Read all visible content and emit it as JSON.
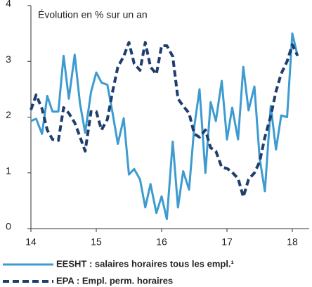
{
  "chart_data": {
    "type": "line",
    "title": "Évolution en % sur un an",
    "x": [
      14,
      14.08,
      14.17,
      14.25,
      14.33,
      14.42,
      14.5,
      14.58,
      14.67,
      14.75,
      14.83,
      14.92,
      15,
      15.08,
      15.17,
      15.25,
      15.33,
      15.42,
      15.5,
      15.58,
      15.67,
      15.75,
      15.83,
      15.92,
      16,
      16.08,
      16.17,
      16.25,
      16.33,
      16.42,
      16.5,
      16.58,
      16.67,
      16.75,
      16.83,
      16.92,
      17,
      17.08,
      17.17,
      17.25,
      17.33,
      17.42,
      17.5,
      17.58,
      17.67,
      17.75,
      17.83,
      17.92,
      18,
      18.08
    ],
    "series": [
      {
        "name": "EESHT : salaires horaires tous les empl.¹",
        "color": "#3d9bd0",
        "dash": false,
        "values": [
          1.93,
          1.97,
          1.7,
          2.38,
          2.1,
          2.1,
          3.1,
          2.33,
          3.12,
          2.25,
          1.72,
          2.45,
          2.8,
          2.62,
          2.58,
          2.07,
          1.52,
          1.98,
          0.97,
          1.07,
          0.88,
          0.38,
          0.8,
          0.28,
          0.58,
          0.17,
          1.56,
          0.38,
          1.03,
          0.7,
          1.83,
          2.5,
          1.0,
          2.27,
          1.93,
          2.65,
          1.6,
          2.17,
          1.6,
          2.9,
          2.12,
          2.55,
          1.26,
          0.67,
          2.2,
          1.42,
          2.03,
          2.0,
          3.5,
          3.1
        ]
      },
      {
        "name": "EPA : Empl. perm. horaires",
        "color": "#1f3e6e",
        "dash": true,
        "values": [
          2.13,
          2.4,
          2.15,
          1.77,
          1.6,
          1.58,
          2.17,
          2.07,
          1.9,
          1.65,
          1.39,
          2.1,
          2.1,
          1.77,
          1.96,
          2.46,
          2.9,
          3.09,
          3.34,
          2.96,
          2.84,
          3.34,
          2.9,
          2.77,
          3.28,
          3.28,
          3.09,
          2.33,
          2.2,
          2.07,
          1.7,
          1.64,
          1.77,
          1.45,
          1.39,
          1.1,
          1.08,
          1.01,
          0.9,
          0.57,
          0.88,
          1.0,
          1.2,
          1.64,
          2.02,
          2.46,
          2.78,
          3.0,
          3.3,
          3.1
        ]
      }
    ],
    "xlim": [
      14,
      18.2
    ],
    "xticks": [
      14,
      15,
      16,
      17,
      18
    ],
    "ylim": [
      0,
      4
    ],
    "yticks": [
      0,
      1,
      2,
      3,
      4
    ],
    "grid": false
  }
}
